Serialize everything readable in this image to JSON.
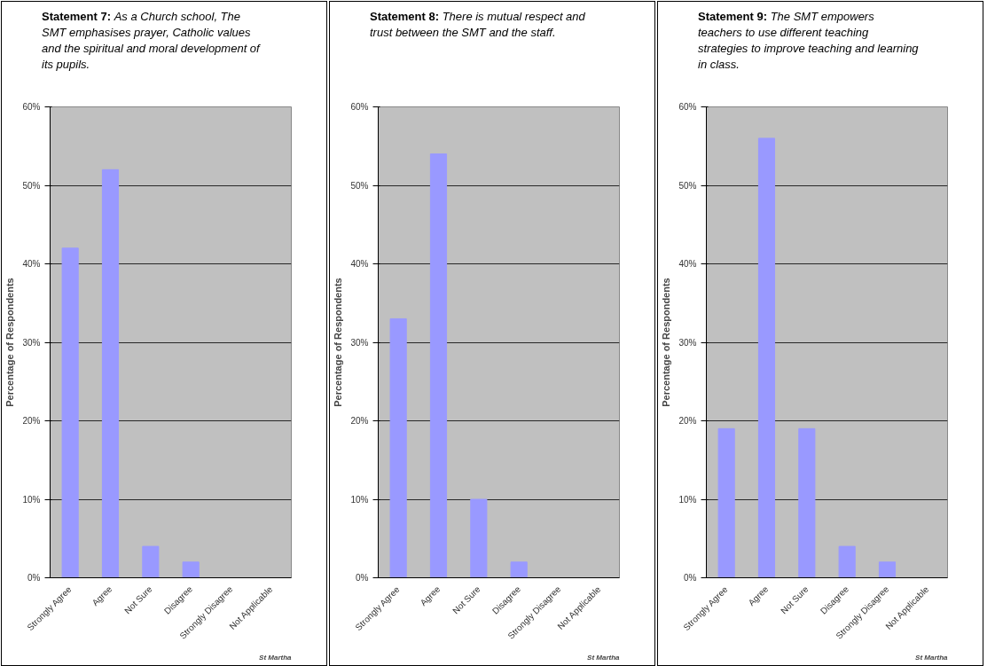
{
  "chart_data": [
    {
      "type": "bar",
      "title": "Statement 7:",
      "subtitle": "As a Church school, The SMT emphasises prayer, Catholic values and the spiritual and moral development of its pupils.",
      "ylabel": "Percentage of Respondents",
      "categories": [
        "Strongly Agree",
        "Agree",
        "Not Sure",
        "Disagree",
        "Strongly Disagree",
        "Not Applicable"
      ],
      "values": [
        42,
        52,
        4,
        2,
        0,
        0
      ],
      "color": "#9999ff",
      "ylim": [
        0,
        60
      ],
      "yticks": [
        {
          "value": 0,
          "label": "0%"
        },
        {
          "value": 10,
          "label": "10%"
        },
        {
          "value": 20,
          "label": "20%"
        },
        {
          "value": 30,
          "label": "30%"
        },
        {
          "value": 40,
          "label": "40%"
        },
        {
          "value": 50,
          "label": "50%"
        },
        {
          "value": 60,
          "label": "60%"
        }
      ],
      "grid": "y",
      "annotations": [
        "St Martha"
      ]
    },
    {
      "type": "bar",
      "title": "Statement 8:",
      "subtitle": "There is mutual respect and trust between the SMT and the staff.",
      "ylabel": "Percentage of Respondents",
      "categories": [
        "Strongly Agree",
        "Agree",
        "Not Sure",
        "Disagree",
        "Strongly Disagree",
        "Not Applicable"
      ],
      "values": [
        33,
        54,
        10,
        2,
        0,
        0
      ],
      "color": "#9999ff",
      "ylim": [
        0,
        60
      ],
      "yticks": [
        {
          "value": 0,
          "label": "0%"
        },
        {
          "value": 10,
          "label": "10%"
        },
        {
          "value": 20,
          "label": "20%"
        },
        {
          "value": 30,
          "label": "30%"
        },
        {
          "value": 40,
          "label": "40%"
        },
        {
          "value": 50,
          "label": "50%"
        },
        {
          "value": 60,
          "label": "60%"
        }
      ],
      "grid": "y",
      "annotations": [
        "St Martha"
      ]
    },
    {
      "type": "bar",
      "title": "Statement 9:",
      "subtitle": "The SMT empowers teachers to use different teaching strategies to improve teaching and learning in class.",
      "ylabel": "Percentage of Respondents",
      "categories": [
        "Strongly Agree",
        "Agree",
        "Not Sure",
        "Disagree",
        "Strongly Disagree",
        "Not Applicable"
      ],
      "values": [
        19,
        56,
        19,
        4,
        2,
        0
      ],
      "color": "#9999ff",
      "ylim": [
        0,
        60
      ],
      "yticks": [
        {
          "value": 0,
          "label": "0%"
        },
        {
          "value": 10,
          "label": "10%"
        },
        {
          "value": 20,
          "label": "20%"
        },
        {
          "value": 30,
          "label": "30%"
        },
        {
          "value": 40,
          "label": "40%"
        },
        {
          "value": 50,
          "label": "50%"
        },
        {
          "value": 60,
          "label": "60%"
        }
      ],
      "grid": "y",
      "annotations": [
        "St Martha"
      ]
    }
  ]
}
